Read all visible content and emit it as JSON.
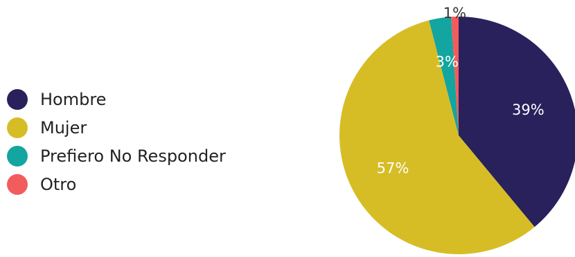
{
  "chart_data": {
    "type": "pie",
    "title": "",
    "categories": [
      "Hombre",
      "Mujer",
      "Prefiero No Responder",
      "Otro"
    ],
    "values": [
      39,
      57,
      3,
      1
    ],
    "labels": [
      "39%",
      "57%",
      "3%",
      "1%"
    ],
    "colors": [
      "#29215c",
      "#d6bd26",
      "#13a59f",
      "#f25c5c"
    ],
    "legend_position": "left",
    "start_angle_deg": 0,
    "direction": "clockwise"
  }
}
